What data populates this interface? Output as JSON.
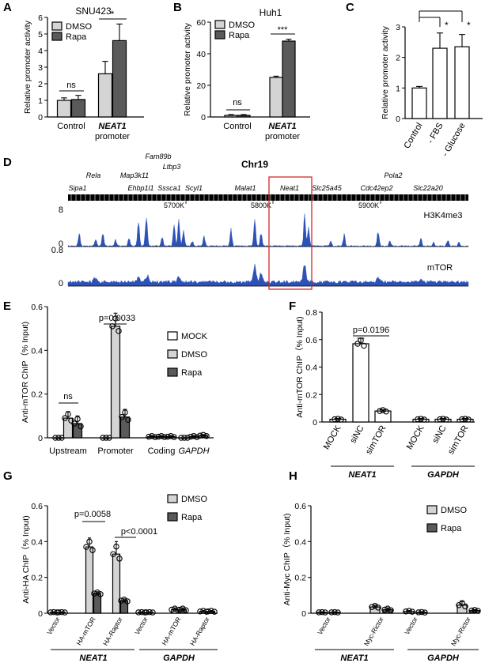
{
  "colors": {
    "white": "#ffffff",
    "light": "#d4d4d4",
    "dark": "#5a5a5a",
    "track": "#2c52b8",
    "box": "#d62728"
  },
  "chart_data": [
    {
      "id": "A",
      "type": "bar",
      "letter": "A",
      "title": "SNU423",
      "ylabel": "Relative promoter activity",
      "ylim": [
        0,
        6
      ],
      "yticks": [
        0,
        1,
        2,
        3,
        4,
        5,
        6
      ],
      "categories": [
        [
          "Control"
        ],
        [
          "NEAT1",
          "promoter"
        ]
      ],
      "series": [
        {
          "name": "DMSO",
          "values": [
            1.0,
            2.6
          ],
          "errors": [
            0.15,
            0.75
          ]
        },
        {
          "name": "Rapa",
          "values": [
            1.05,
            4.6
          ],
          "errors": [
            0.25,
            1.0
          ]
        }
      ],
      "annotations": [
        {
          "text": "ns",
          "group": 0
        },
        {
          "text": "*",
          "group": 1
        }
      ],
      "legend": "top-left"
    },
    {
      "id": "B",
      "type": "bar",
      "letter": "B",
      "title": "Huh1",
      "ylabel": "Relative promoter activity",
      "ylim": [
        0,
        60
      ],
      "yticks": [
        0,
        20,
        40,
        60
      ],
      "categories": [
        [
          "Control"
        ],
        [
          "NEAT1",
          "promoter"
        ]
      ],
      "series": [
        {
          "name": "DMSO",
          "values": [
            1.0,
            25.0
          ],
          "errors": [
            0.5,
            0.8
          ]
        },
        {
          "name": "Rapa",
          "values": [
            1.0,
            48.0
          ],
          "errors": [
            0.5,
            1.2
          ]
        }
      ],
      "annotations": [
        {
          "text": "ns",
          "group": 0
        },
        {
          "text": "***",
          "group": 1
        }
      ],
      "legend": "top-left"
    },
    {
      "id": "C",
      "type": "bar",
      "letter": "C",
      "title": "",
      "ylabel": "Relative promoter activity",
      "ylim": [
        0,
        3
      ],
      "yticks": [
        0,
        1,
        2,
        3
      ],
      "categories": [
        "Control",
        "- FBS",
        "- Glucose"
      ],
      "values": [
        1.0,
        2.3,
        2.35
      ],
      "errors": [
        0.05,
        0.5,
        0.4
      ],
      "annotations": [
        {
          "text": "*",
          "from": 0,
          "to": 1
        },
        {
          "text": "*",
          "from": 0,
          "to": 2
        }
      ]
    },
    {
      "id": "D",
      "type": "genome-track",
      "letter": "D",
      "title": "Chr19",
      "genes_top": [
        "Rela",
        "Map3k11",
        "Fam89b",
        "Ltbp3",
        "Pola2"
      ],
      "genes_bottom": [
        "Sipa1",
        "Ehbp1l1",
        "Sssca1",
        "Scyl1",
        "Malat1",
        "Neat1",
        "Slc25a45",
        "Cdc42ep2",
        "Slc22a20"
      ],
      "coordinates": [
        "5700K",
        "5800K",
        "5900K"
      ],
      "tracks": [
        {
          "name": "H3K4me3",
          "ylim": [
            0,
            8
          ]
        },
        {
          "name": "mTOR",
          "ylim": [
            0,
            0.8
          ]
        }
      ],
      "highlight": "Neat1"
    },
    {
      "id": "E",
      "type": "bar",
      "letter": "E",
      "title": "",
      "ylabel": "Anti-mTOR ChIP（% Input)",
      "ylim": [
        0,
        0.6
      ],
      "yticks": [
        "0",
        "0.2",
        "0.4",
        "0.6"
      ],
      "categories": [
        "Upstream",
        "Promoter",
        "Coding",
        "GAPDH"
      ],
      "series": [
        {
          "name": "MOCK",
          "values": [
            0.0,
            0.0,
            0.005,
            0.0
          ],
          "errors": [
            0,
            0,
            0.005,
            0
          ]
        },
        {
          "name": "DMSO",
          "values": [
            0.09,
            0.51,
            0.005,
            0.005
          ],
          "errors": [
            0.03,
            0.06,
            0.005,
            0.005
          ]
        },
        {
          "name": "Rapa",
          "values": [
            0.065,
            0.095,
            0.005,
            0.01
          ],
          "errors": [
            0.035,
            0.035,
            0.005,
            0.005
          ]
        }
      ],
      "annotations": [
        {
          "text": "ns",
          "group": 0
        },
        {
          "text": "p=0.0033",
          "group": 1
        }
      ],
      "legend": "top-right"
    },
    {
      "id": "F",
      "type": "bar",
      "letter": "F",
      "title": "",
      "ylabel": "Anti-mTOR ChIP（% Input)",
      "ylim": [
        0,
        0.8
      ],
      "yticks": [
        "0",
        "0.2",
        "0.4",
        "0.6",
        "0.8"
      ],
      "categories": [
        "MOCK",
        "siNC",
        "simTOR",
        "MOCK",
        "siNC",
        "simTOR"
      ],
      "groups": [
        "NEAT1",
        "GAPDH"
      ],
      "values": [
        0.02,
        0.57,
        0.08,
        0.02,
        0.02,
        0.02
      ],
      "errors": [
        0.005,
        0.04,
        0.01,
        0.005,
        0.005,
        0.005
      ],
      "annotations": [
        {
          "text": "p=0.0196",
          "from": 1,
          "to": 2
        }
      ]
    },
    {
      "id": "G",
      "type": "bar",
      "letter": "G",
      "title": "",
      "ylabel": "Anti-HA ChIP（% Input)",
      "ylim": [
        0,
        0.6
      ],
      "yticks": [
        "0",
        "0.2",
        "0.4",
        "0.6"
      ],
      "categories": [
        "Vector",
        "HA-mTOR",
        "HA-Raptor",
        "Vector",
        "HA-mTOR",
        "HA-Raptor"
      ],
      "groups": [
        "NEAT1",
        "GAPDH"
      ],
      "series": [
        {
          "name": "DMSO",
          "values": [
            0.005,
            0.37,
            0.33,
            0.005,
            0.02,
            0.01
          ],
          "errors": [
            0.002,
            0.05,
            0.07,
            0.002,
            0.01,
            0.005
          ]
        },
        {
          "name": "Rapa",
          "values": [
            0.005,
            0.11,
            0.07,
            0.005,
            0.02,
            0.01
          ],
          "errors": [
            0.002,
            0.01,
            0.01,
            0.002,
            0.01,
            0.005
          ]
        }
      ],
      "annotations": [
        {
          "text": "p=0.0058",
          "cat": 1
        },
        {
          "text": "p<0.0001",
          "cat": 2
        }
      ],
      "legend": "top-right"
    },
    {
      "id": "H",
      "type": "bar",
      "letter": "H",
      "title": "",
      "ylabel": "Anti-Myc ChIP（% Input)",
      "ylim": [
        0,
        0.6
      ],
      "yticks": [
        "0",
        "0.2",
        "0.4",
        "0.6"
      ],
      "categories": [
        "Vector",
        "Myc-Rictor",
        "Vector",
        "Myc-Rictor"
      ],
      "groups": [
        "NEAT1",
        "GAPDH"
      ],
      "series": [
        {
          "name": "DMSO",
          "values": [
            0.005,
            0.035,
            0.01,
            0.045
          ],
          "errors": [
            0.002,
            0.01,
            0.005,
            0.02
          ]
        },
        {
          "name": "Rapa",
          "values": [
            0.005,
            0.02,
            0.005,
            0.015
          ],
          "errors": [
            0.002,
            0.01,
            0.003,
            0.005
          ]
        }
      ],
      "legend": "top-right"
    }
  ]
}
